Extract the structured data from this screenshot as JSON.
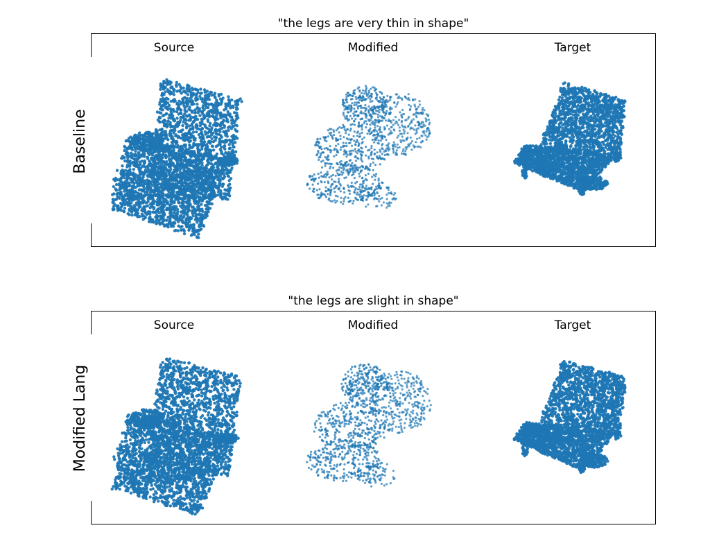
{
  "panels": [
    {
      "title": "\"the legs are very thin in shape\"",
      "row_label": "Baseline",
      "columns": [
        "Source",
        "Modified",
        "Target"
      ]
    },
    {
      "title": "\"the legs are slight in shape\"",
      "row_label": "Modified Lang",
      "columns": [
        "Source",
        "Modified",
        "Target"
      ]
    }
  ],
  "colors": {
    "points": "#1f77b4",
    "frame": "#000000"
  }
}
